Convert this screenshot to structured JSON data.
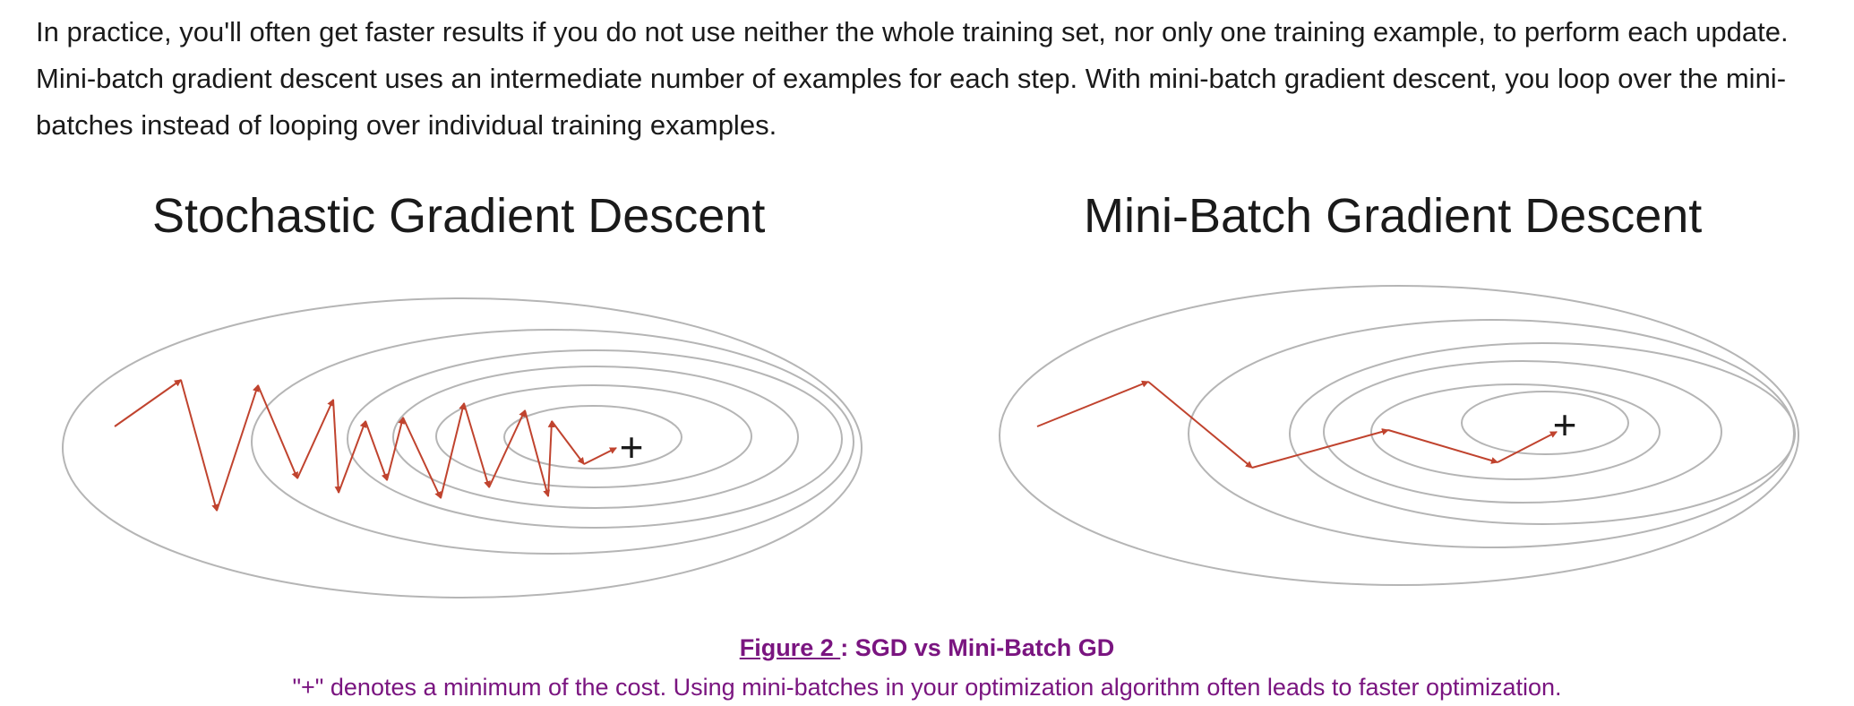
{
  "intro": {
    "text": "In practice, you'll often get faster results if you do not use neither the whole training set, nor only one training example, to perform each update. Mini-batch gradient descent uses an intermediate number of examples for each step. With mini-batch gradient descent, you loop over the mini-batches instead of looping over individual training examples."
  },
  "panels": {
    "sgd": {
      "title": "Stochastic Gradient Descent",
      "minimum_marker": "+"
    },
    "minibatch": {
      "title": "Mini-Batch Gradient Descent",
      "minimum_marker": "+"
    }
  },
  "caption": {
    "figure_label": "Figure 2 ",
    "separator": ": ",
    "title": "SGD vs Mini-Batch GD",
    "text": "\"+\" denotes a minimum of the cost. Using mini-batches in your optimization algorithm often leads to faster optimization."
  },
  "colors": {
    "contour": "#b5b5b5",
    "path": "#c0432e",
    "caption": "#7a1580",
    "text": "#1a1a1a"
  }
}
